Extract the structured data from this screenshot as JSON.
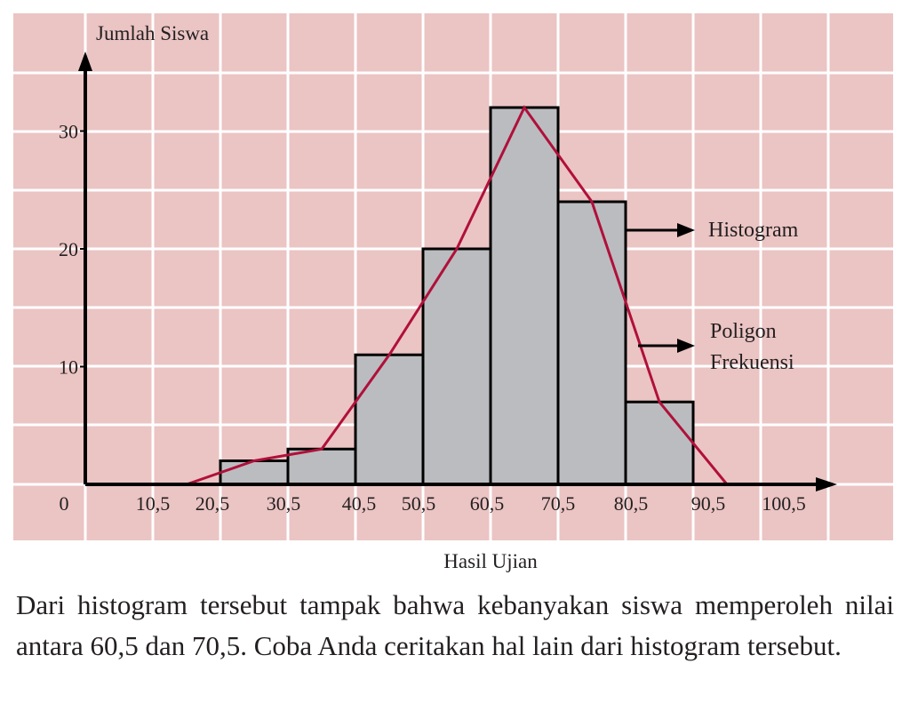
{
  "chart_data": {
    "type": "bar",
    "title": "",
    "ylabel": "Jumlah Siswa",
    "xlabel": "Hasil Ujian",
    "origin_label": "0",
    "x_tick_labels": [
      "10,5",
      "20,5",
      "30,5",
      "40,5",
      "50,5",
      "60,5",
      "70,5",
      "80,5",
      "90,5",
      "100,5"
    ],
    "y_ticks": [
      10,
      20,
      30
    ],
    "ylim": [
      0,
      36
    ],
    "bins": [
      {
        "from": 20.5,
        "to": 30.5,
        "value": 2
      },
      {
        "from": 30.5,
        "to": 40.5,
        "value": 3
      },
      {
        "from": 40.5,
        "to": 50.5,
        "value": 11
      },
      {
        "from": 50.5,
        "to": 60.5,
        "value": 20
      },
      {
        "from": 60.5,
        "to": 70.5,
        "value": 32
      },
      {
        "from": 70.5,
        "to": 80.5,
        "value": 24
      },
      {
        "from": 80.5,
        "to": 90.5,
        "value": 7
      }
    ],
    "polygon": [
      {
        "x": 15.5,
        "y": 0
      },
      {
        "x": 25.5,
        "y": 2
      },
      {
        "x": 35.5,
        "y": 3
      },
      {
        "x": 45.5,
        "y": 11
      },
      {
        "x": 55.5,
        "y": 20
      },
      {
        "x": 65.5,
        "y": 32
      },
      {
        "x": 75.5,
        "y": 24
      },
      {
        "x": 85.5,
        "y": 7
      },
      {
        "x": 95.5,
        "y": 0
      }
    ],
    "annotations": [
      {
        "text": "Histogram",
        "lines": [
          "Histogram"
        ]
      },
      {
        "text": "Poligon Frekuensi",
        "lines": [
          "Poligon",
          "Frekuensi"
        ]
      }
    ],
    "colors": {
      "background": "#ebc4c4",
      "grid": "#ffffff",
      "bar_fill": "#bbbcc0",
      "bar_stroke": "#000000",
      "polygon": "#b0103a",
      "axis": "#000000"
    },
    "grid": true
  },
  "paragraph": "Dari histogram tersebut tampak bahwa kebanyakan siswa memperoleh nilai antara 60,5 dan 70,5. Coba Anda ceritakan hal lain dari histogram tersebut."
}
